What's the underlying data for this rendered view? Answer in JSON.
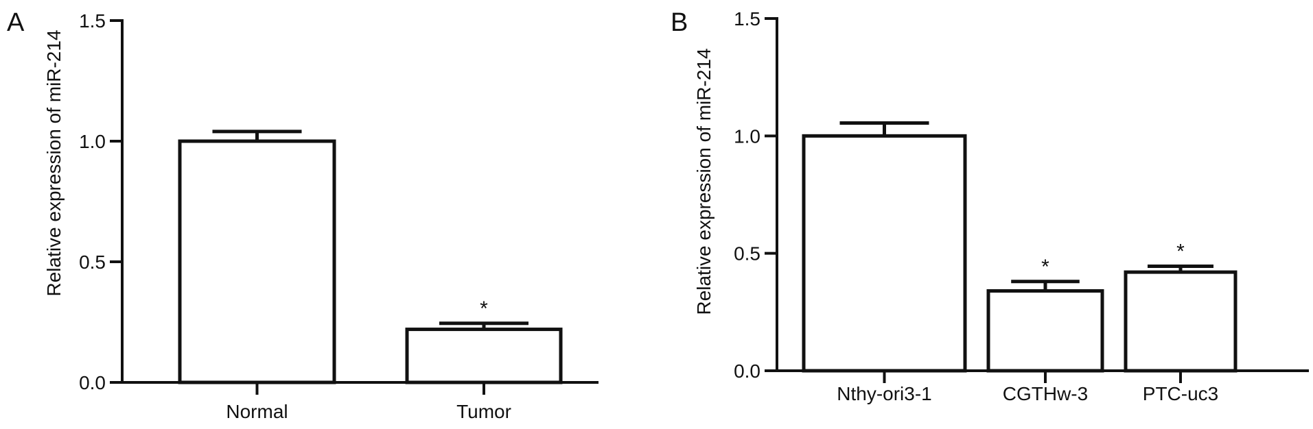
{
  "figure": {
    "panels": [
      "A",
      "B"
    ]
  },
  "chart_data": [
    {
      "panel": "A",
      "type": "bar",
      "categories": [
        "Normal",
        "Tumor"
      ],
      "values": [
        1.0,
        0.22
      ],
      "error_upper": [
        0.04,
        0.025
      ],
      "annotations": [
        "",
        "*"
      ],
      "title": "",
      "xlabel": "",
      "ylabel": "Relative expression of miR-214",
      "ylim": [
        0,
        1.5
      ],
      "yticks": [
        0.0,
        0.5,
        1.0,
        1.5
      ],
      "ytick_labels": [
        "0.0",
        "0.5",
        "1.0",
        "1.5"
      ],
      "grid": false
    },
    {
      "panel": "B",
      "type": "bar",
      "categories": [
        "Nthy-ori3-1",
        "CGTHw-3",
        "PTC-uc3"
      ],
      "values": [
        1.0,
        0.34,
        0.42
      ],
      "error_upper": [
        0.055,
        0.04,
        0.025
      ],
      "annotations": [
        "",
        "*",
        "*"
      ],
      "title": "",
      "xlabel": "",
      "ylabel": "Relative expression of miR-214",
      "ylim": [
        0,
        1.5
      ],
      "yticks": [
        0.0,
        0.5,
        1.0,
        1.5
      ],
      "ytick_labels": [
        "0.0",
        "0.5",
        "1.0",
        "1.5"
      ],
      "grid": false
    }
  ]
}
